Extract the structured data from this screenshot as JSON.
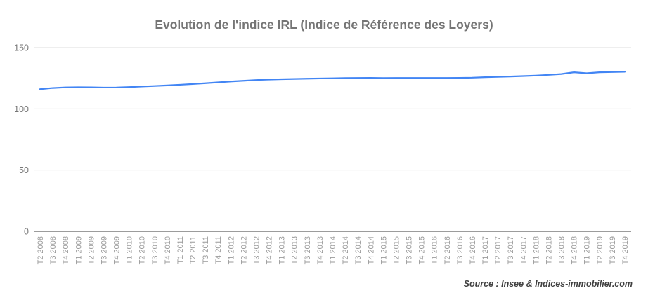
{
  "header": {
    "title": "Evolution de l'indice IRL (Indice de Référence des Loyers)"
  },
  "footer": {
    "source": "Source : Insee & Indices-immobilier.com"
  },
  "chart_data": {
    "type": "line",
    "title": "Evolution de l'indice IRL (Indice de Référence des Loyers)",
    "series_name": "Indice IRL",
    "categories": [
      "T2 2008",
      "T3 2008",
      "T4 2008",
      "T1 2009",
      "T2 2009",
      "T3 2009",
      "T4 2009",
      "T1 2010",
      "T2 2010",
      "T3 2010",
      "T4 2010",
      "T1 2011",
      "T2 2011",
      "T3 2011",
      "T4 2011",
      "T1 2012",
      "T2 2012",
      "T3 2012",
      "T4 2012",
      "T1 2013",
      "T2 2013",
      "T3 2013",
      "T4 2013",
      "T1 2014",
      "T2 2014",
      "T3 2014",
      "T4 2014",
      "T1 2015",
      "T2 2015",
      "T3 2015",
      "T4 2015",
      "T1 2016",
      "T2 2016",
      "T3 2016",
      "T4 2016",
      "T1 2017",
      "T2 2017",
      "T3 2017",
      "T4 2017",
      "T1 2018",
      "T2 2018",
      "T3 2018",
      "T4 2018",
      "T1 2019",
      "T2 2019",
      "T3 2019",
      "T4 2019"
    ],
    "values": [
      116.07,
      117.03,
      117.54,
      117.7,
      117.59,
      117.41,
      117.47,
      117.81,
      118.26,
      118.7,
      119.17,
      119.69,
      120.31,
      120.95,
      121.68,
      122.37,
      122.96,
      123.55,
      123.97,
      124.25,
      124.44,
      124.66,
      124.83,
      125.0,
      125.15,
      125.24,
      125.29,
      125.19,
      125.25,
      125.26,
      125.28,
      125.26,
      125.25,
      125.33,
      125.5,
      125.9,
      126.19,
      126.46,
      126.82,
      127.22,
      127.77,
      128.45,
      129.9,
      129.1,
      129.9,
      130.1,
      130.3
    ],
    "xlabel": "",
    "ylabel": "",
    "ylim": [
      0,
      150
    ],
    "yticks": [
      0,
      50,
      100,
      150
    ],
    "grid": true,
    "legend": "none",
    "colors": {
      "line": "#4285f4",
      "gridline": "#dcdcdc",
      "axis": "#3a3a3a",
      "y_labels": "#757575",
      "x_labels": "#9a9a9a",
      "title": "#757575",
      "background": "#ffffff"
    }
  }
}
